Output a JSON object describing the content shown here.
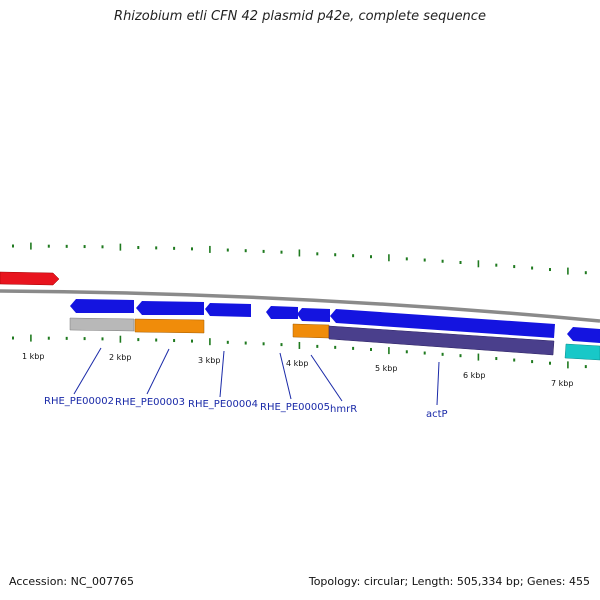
{
  "title": "Rhizobium etli CFN 42 plasmid p42e, complete sequence",
  "footer": {
    "accession": "Accession: NC_007765",
    "summary": "Topology: circular; Length: 505,334 bp; Genes: 455"
  },
  "scale": {
    "kbp_labels": [
      "1 kbp",
      "2 kbp",
      "3 kbp",
      "4 kbp",
      "5 kbp",
      "6 kbp",
      "7 kbp"
    ]
  },
  "genes": [
    {
      "label": "RHE_PE00002"
    },
    {
      "label": "RHE_PE00003"
    },
    {
      "label": "RHE_PE00004"
    },
    {
      "label": "RHE_PE00005"
    },
    {
      "label": "hmrR"
    },
    {
      "label": "actP"
    }
  ],
  "colors": {
    "forward_gene": "#e8141e",
    "reverse_gene": "#1414e0",
    "backbone": "#8a8a8a",
    "tick": "#1f7a1f",
    "category_grey": "#b8b8b8",
    "category_orange": "#f08c0a",
    "category_purple": "#4a3f8c",
    "cds_cyan": "#18c8c8",
    "label_blue": "#1a2aa8"
  }
}
